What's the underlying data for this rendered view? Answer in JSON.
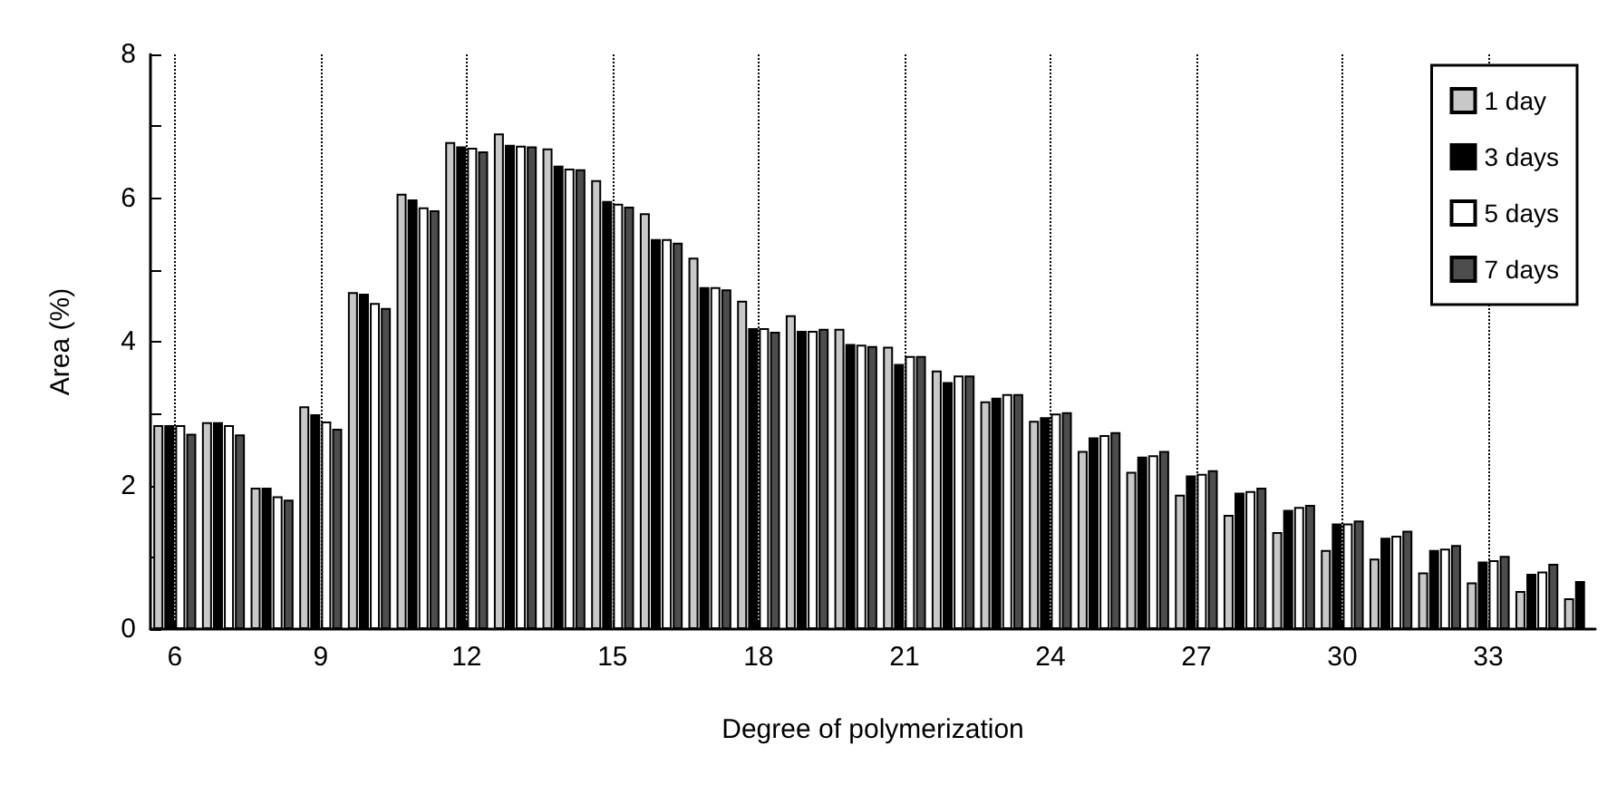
{
  "chart_data": {
    "type": "bar",
    "xlabel": "Degree of polymerization",
    "ylabel": "Area (%)",
    "x": [
      6,
      7,
      8,
      9,
      10,
      11,
      12,
      13,
      14,
      15,
      16,
      17,
      18,
      19,
      20,
      21,
      22,
      23,
      24,
      25,
      26,
      27,
      28,
      29,
      30,
      31,
      32,
      33,
      34,
      35
    ],
    "series": [
      {
        "name": "1 day",
        "color": "#c8c8c8",
        "values": [
          2.84,
          2.88,
          1.97,
          3.1,
          4.69,
          6.06,
          6.78,
          6.9,
          6.69,
          6.25,
          5.79,
          5.17,
          4.57,
          4.37,
          4.18,
          3.93,
          3.6,
          3.17,
          2.9,
          2.48,
          2.19,
          1.87,
          1.59,
          1.35,
          1.1,
          0.98,
          0.79,
          0.65,
          0.53,
          0.43
        ]
      },
      {
        "name": "3 days",
        "color": "#000000",
        "values": [
          2.84,
          2.88,
          1.97,
          2.99,
          4.67,
          5.98,
          6.72,
          6.74,
          6.45,
          5.96,
          5.43,
          4.76,
          4.19,
          4.15,
          3.97,
          3.69,
          3.44,
          3.22,
          2.95,
          2.67,
          2.4,
          2.14,
          1.9,
          1.66,
          1.47,
          1.27,
          1.1,
          0.94,
          0.77,
          0.67
        ]
      },
      {
        "name": "5 days",
        "color": "#ffffff",
        "values": [
          2.84,
          2.84,
          1.85,
          2.89,
          4.54,
          5.87,
          6.7,
          6.73,
          6.41,
          5.92,
          5.43,
          4.76,
          4.19,
          4.15,
          3.96,
          3.8,
          3.53,
          3.27,
          3.0,
          2.7,
          2.42,
          2.16,
          1.92,
          1.7,
          1.47,
          1.3,
          1.12,
          0.96,
          0.8,
          null
        ]
      },
      {
        "name": "7 days",
        "color": "#4d4d4d",
        "values": [
          2.72,
          2.71,
          1.8,
          2.79,
          4.47,
          5.83,
          6.65,
          6.72,
          6.4,
          5.88,
          5.38,
          4.73,
          4.14,
          4.18,
          3.94,
          3.8,
          3.53,
          3.27,
          3.02,
          2.74,
          2.48,
          2.21,
          1.97,
          1.73,
          1.51,
          1.37,
          1.17,
          1.02,
          0.91,
          null
        ]
      }
    ],
    "xlim": [
      5.5,
      35.2
    ],
    "xticks": [
      6,
      9,
      12,
      15,
      18,
      21,
      24,
      27,
      30,
      33
    ],
    "ylim": [
      0,
      8
    ],
    "yticks": [
      0,
      {
        "value": 1,
        "label": null
      },
      2,
      {
        "value": 3,
        "label": null
      },
      4,
      {
        "value": 5,
        "label": null
      },
      6,
      {
        "value": 7,
        "label": null
      },
      8
    ],
    "grid": "x",
    "legend": "top right"
  }
}
